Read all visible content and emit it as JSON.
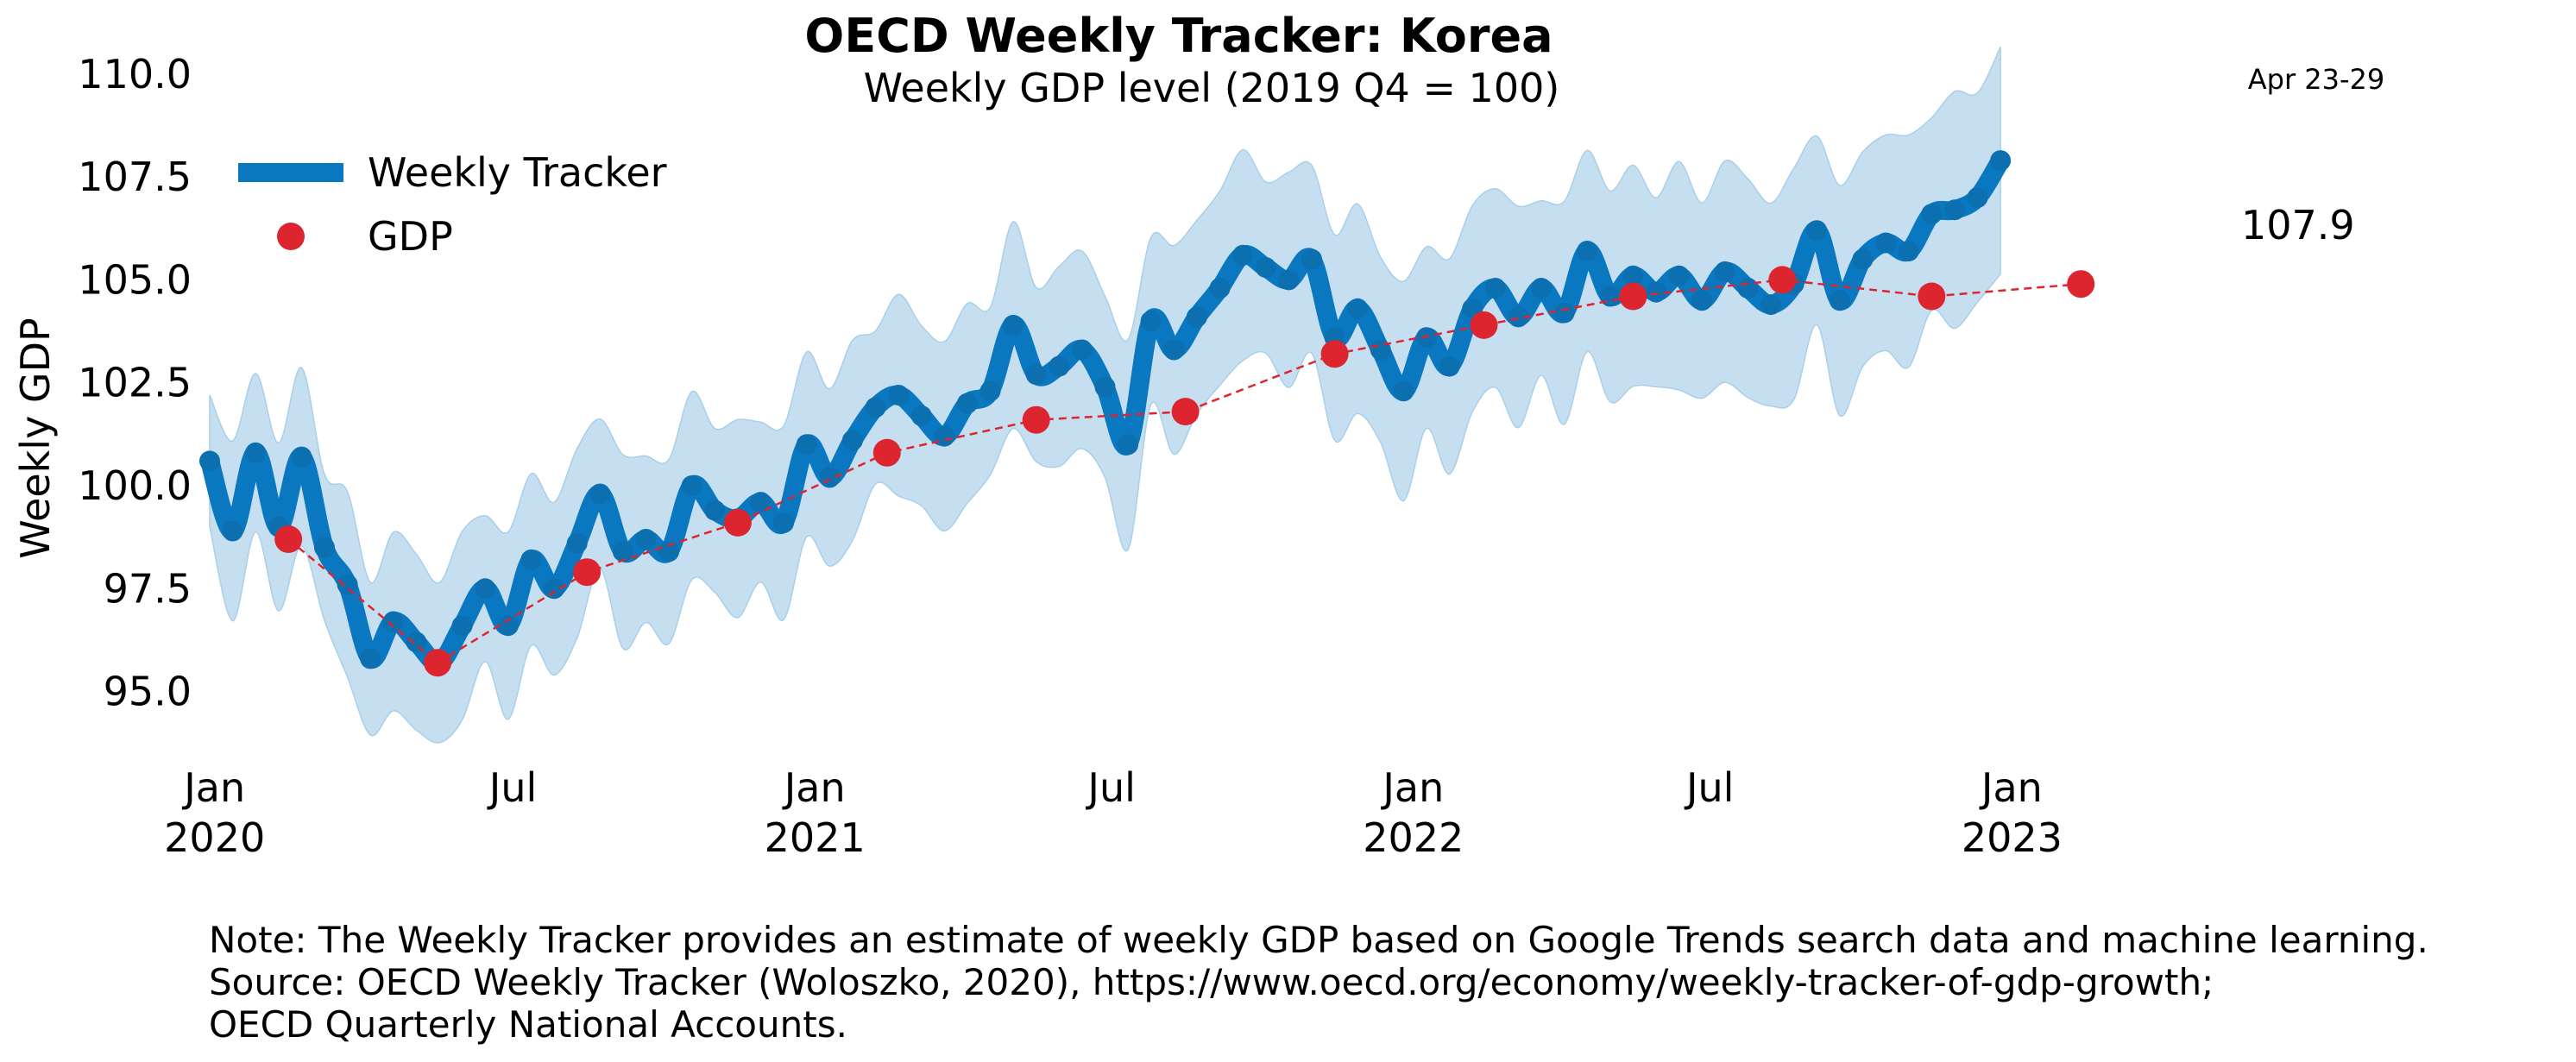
{
  "chart_data": {
    "type": "line",
    "title": "OECD Weekly Tracker: Korea",
    "subtitle": "Weekly GDP level (2019 Q4 = 100)",
    "ylabel": "Weekly GDP",
    "xlabel": "",
    "period_label": "Apr 23-29",
    "last_value_label": "107.9",
    "ylim": [
      93.0,
      110.5
    ],
    "xlim": [
      "2019-12-29",
      "2023-05-05"
    ],
    "grid": false,
    "legend_position": "top-left",
    "y_ticks": [
      "110.0",
      "107.5",
      "105.0",
      "102.5",
      "100.0",
      "97.5",
      "95.0"
    ],
    "x_ticks": [
      {
        "date": "2020-01-01",
        "month": "Jan",
        "year": "2020"
      },
      {
        "date": "2020-07-01",
        "month": "Jul",
        "year": ""
      },
      {
        "date": "2021-01-01",
        "month": "Jan",
        "year": "2021"
      },
      {
        "date": "2021-07-01",
        "month": "Jul",
        "year": ""
      },
      {
        "date": "2022-01-01",
        "month": "Jan",
        "year": "2022"
      },
      {
        "date": "2022-07-01",
        "month": "Jul",
        "year": ""
      },
      {
        "date": "2023-01-01",
        "month": "Jan",
        "year": "2023"
      }
    ],
    "series": [
      {
        "name": "Weekly Tracker",
        "color": "#0a78c0",
        "band_color": "#c6dff0",
        "points": [
          [
            "2019-12-29",
            100.6
          ],
          [
            "2020-01-12",
            98.9
          ],
          [
            "2020-01-26",
            100.8
          ],
          [
            "2020-02-09",
            99.0
          ],
          [
            "2020-02-23",
            100.7
          ],
          [
            "2020-03-08",
            98.5
          ],
          [
            "2020-03-22",
            97.6
          ],
          [
            "2020-04-05",
            95.8
          ],
          [
            "2020-04-19",
            96.7
          ],
          [
            "2020-05-03",
            96.2
          ],
          [
            "2020-05-17",
            95.7
          ],
          [
            "2020-05-31",
            96.6
          ],
          [
            "2020-06-14",
            97.5
          ],
          [
            "2020-06-28",
            96.6
          ],
          [
            "2020-07-12",
            98.2
          ],
          [
            "2020-07-26",
            97.5
          ],
          [
            "2020-08-09",
            98.6
          ],
          [
            "2020-08-23",
            99.8
          ],
          [
            "2020-09-06",
            98.4
          ],
          [
            "2020-09-20",
            98.7
          ],
          [
            "2020-10-04",
            98.4
          ],
          [
            "2020-10-18",
            100.0
          ],
          [
            "2020-11-01",
            99.4
          ],
          [
            "2020-11-15",
            99.2
          ],
          [
            "2020-11-29",
            99.6
          ],
          [
            "2020-12-13",
            99.1
          ],
          [
            "2020-12-27",
            101.0
          ],
          [
            "2021-01-10",
            100.2
          ],
          [
            "2021-01-24",
            101.1
          ],
          [
            "2021-02-07",
            101.9
          ],
          [
            "2021-02-21",
            102.2
          ],
          [
            "2021-03-07",
            101.7
          ],
          [
            "2021-03-21",
            101.2
          ],
          [
            "2021-04-04",
            102.0
          ],
          [
            "2021-04-18",
            102.3
          ],
          [
            "2021-05-02",
            103.9
          ],
          [
            "2021-05-16",
            102.7
          ],
          [
            "2021-05-30",
            102.9
          ],
          [
            "2021-06-13",
            103.3
          ],
          [
            "2021-06-27",
            102.4
          ],
          [
            "2021-07-11",
            101.0
          ],
          [
            "2021-07-25",
            104.0
          ],
          [
            "2021-08-08",
            103.3
          ],
          [
            "2021-08-22",
            104.1
          ],
          [
            "2021-09-05",
            104.8
          ],
          [
            "2021-09-19",
            105.6
          ],
          [
            "2021-10-03",
            105.3
          ],
          [
            "2021-10-17",
            105.0
          ],
          [
            "2021-10-31",
            105.5
          ],
          [
            "2021-11-14",
            103.6
          ],
          [
            "2021-11-28",
            104.3
          ],
          [
            "2021-12-12",
            103.3
          ],
          [
            "2021-12-26",
            102.3
          ],
          [
            "2022-01-09",
            103.6
          ],
          [
            "2022-01-23",
            102.9
          ],
          [
            "2022-02-06",
            104.3
          ],
          [
            "2022-02-20",
            104.8
          ],
          [
            "2022-03-06",
            104.1
          ],
          [
            "2022-03-20",
            104.8
          ],
          [
            "2022-04-03",
            104.2
          ],
          [
            "2022-04-17",
            105.7
          ],
          [
            "2022-05-01",
            104.6
          ],
          [
            "2022-05-15",
            105.1
          ],
          [
            "2022-05-29",
            104.7
          ],
          [
            "2022-06-12",
            105.1
          ],
          [
            "2022-06-26",
            104.5
          ],
          [
            "2022-07-10",
            105.2
          ],
          [
            "2022-07-24",
            104.8
          ],
          [
            "2022-08-07",
            104.4
          ],
          [
            "2022-08-21",
            104.9
          ],
          [
            "2022-09-04",
            106.2
          ],
          [
            "2022-09-18",
            104.5
          ],
          [
            "2022-10-02",
            105.5
          ],
          [
            "2022-10-16",
            105.9
          ],
          [
            "2022-10-30",
            105.7
          ],
          [
            "2022-11-13",
            106.6
          ],
          [
            "2022-11-27",
            106.7
          ],
          [
            "2022-12-11",
            107.0
          ],
          [
            "2022-12-25",
            107.9
          ]
        ]
      },
      {
        "name": "GDP",
        "color": "#dd2530",
        "points": [
          [
            "2020-02-15",
            98.7
          ],
          [
            "2020-05-16",
            95.7
          ],
          [
            "2020-08-15",
            97.9
          ],
          [
            "2020-11-15",
            99.1
          ],
          [
            "2021-02-14",
            100.8
          ],
          [
            "2021-05-16",
            101.6
          ],
          [
            "2021-08-15",
            101.8
          ],
          [
            "2021-11-14",
            103.2
          ],
          [
            "2022-02-13",
            103.9
          ],
          [
            "2022-05-15",
            104.6
          ],
          [
            "2022-08-14",
            105.0
          ],
          [
            "2022-11-13",
            104.6
          ],
          [
            "2023-02-12",
            104.9
          ]
        ]
      }
    ]
  },
  "note_lines": [
    "Note: The Weekly Tracker provides an estimate of weekly GDP based on Google Trends search data and machine learning.",
    "Source: OECD Weekly Tracker (Woloszko, 2020), https://www.oecd.org/economy/weekly-tracker-of-gdp-growth;",
    "OECD Quarterly National Accounts."
  ]
}
